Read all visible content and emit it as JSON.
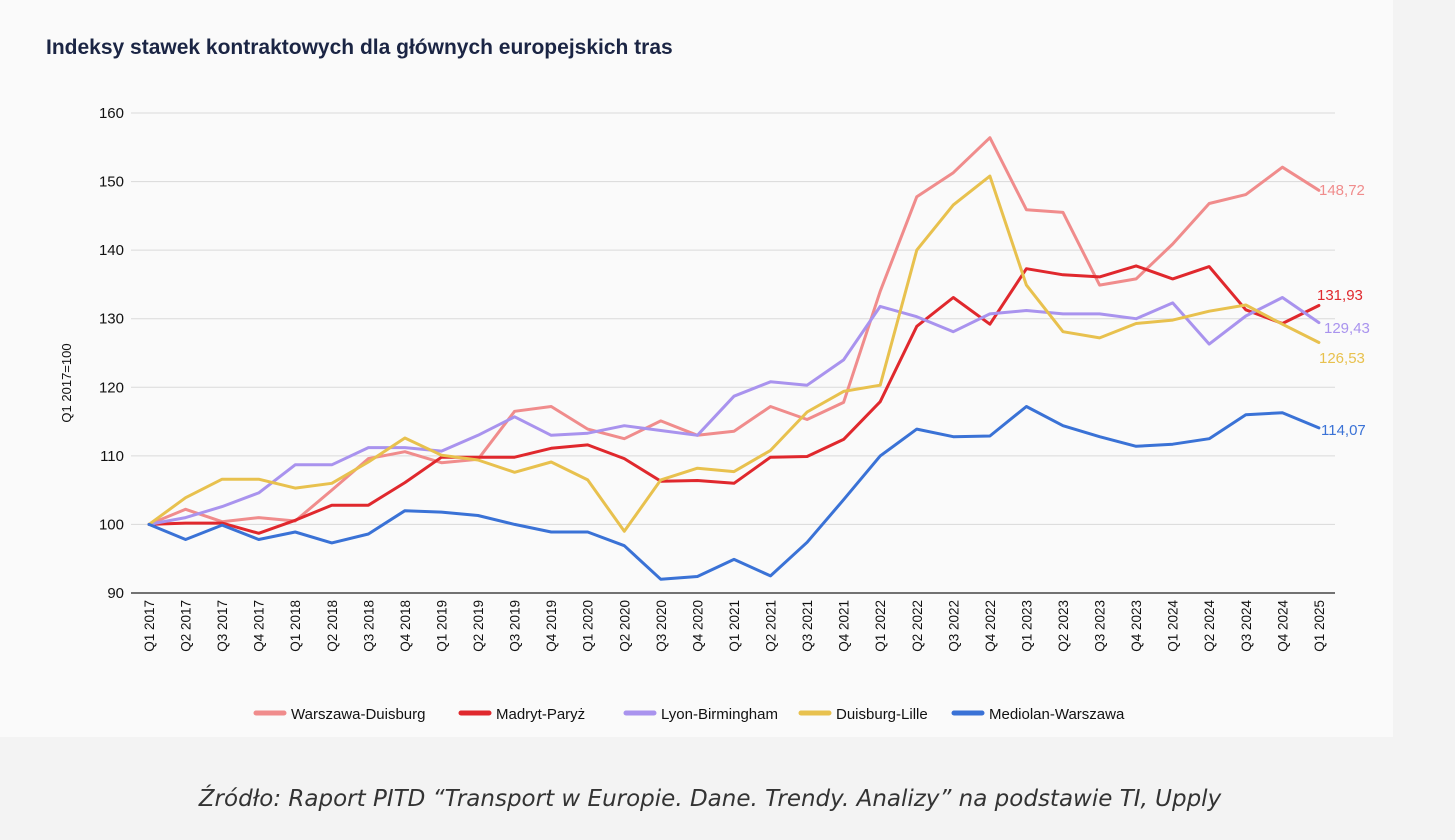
{
  "chart_data": {
    "type": "line",
    "title": "Indeksy stawek kontraktowych dla głównych europejskich tras",
    "ylabel": "Q1 2017=100",
    "xlabel": "",
    "ylim": [
      90,
      160
    ],
    "yticks": [
      90,
      100,
      110,
      120,
      130,
      140,
      150,
      160
    ],
    "grid": true,
    "legend_position": "bottom",
    "categories": [
      "Q1 2017",
      "Q2 2017",
      "Q3 2017",
      "Q4 2017",
      "Q1 2018",
      "Q2 2018",
      "Q3 2018",
      "Q4 2018",
      "Q1 2019",
      "Q2 2019",
      "Q3 2019",
      "Q4 2019",
      "Q1 2020",
      "Q2 2020",
      "Q3 2020",
      "Q4 2020",
      "Q1 2021",
      "Q2 2021",
      "Q3 2021",
      "Q4 2021",
      "Q1 2022",
      "Q2 2022",
      "Q3 2022",
      "Q4 2022",
      "Q1 2023",
      "Q2 2023",
      "Q3 2023",
      "Q4 2023",
      "Q1 2024",
      "Q2 2024",
      "Q3 2024",
      "Q4 2024",
      "Q1 2025"
    ],
    "series": [
      {
        "name": "Warszawa-Duisburg",
        "color": "#f08c8c",
        "end_label": "148,72",
        "values": [
          100,
          102.2,
          100.4,
          101,
          100.5,
          105,
          109.6,
          110.6,
          109,
          109.5,
          116.5,
          117.2,
          113.9,
          112.5,
          115.1,
          113,
          113.6,
          117.2,
          115.3,
          117.8,
          134,
          147.8,
          151.3,
          156.4,
          145.9,
          145.5,
          134.9,
          135.8,
          140.9,
          146.8,
          148.1,
          152.1,
          148.72
        ]
      },
      {
        "name": "Madryt-Paryż",
        "color": "#e0282d",
        "end_label": "131,93",
        "values": [
          100,
          100.2,
          100.2,
          98.7,
          100.6,
          102.8,
          102.8,
          106.1,
          109.8,
          109.8,
          109.8,
          111.1,
          111.6,
          109.6,
          106.3,
          106.4,
          106,
          109.8,
          109.9,
          112.4,
          117.9,
          128.9,
          133.1,
          129.2,
          137.3,
          136.4,
          136.1,
          137.7,
          135.8,
          137.6,
          131.3,
          129.3,
          131.93
        ]
      },
      {
        "name": "Lyon-Birmingham",
        "color": "#a993ee",
        "end_label": "129,43",
        "values": [
          100,
          101,
          102.6,
          104.6,
          108.7,
          108.7,
          111.2,
          111.2,
          110.7,
          113,
          115.7,
          113,
          113.3,
          114.4,
          113.7,
          113,
          118.7,
          120.8,
          120.3,
          124,
          131.8,
          130.3,
          128.1,
          130.7,
          131.2,
          130.7,
          130.7,
          130,
          132.3,
          126.3,
          130.4,
          133.1,
          129.43
        ]
      },
      {
        "name": "Duisburg-Lille",
        "color": "#e8c14e",
        "end_label": "126,53",
        "values": [
          100,
          103.9,
          106.6,
          106.6,
          105.3,
          106,
          109.1,
          112.6,
          110.1,
          109.4,
          107.6,
          109.1,
          106.5,
          99,
          106.5,
          108.2,
          107.7,
          110.8,
          116.4,
          119.4,
          120.3,
          140,
          146.6,
          150.8,
          134.9,
          128.1,
          127.2,
          129.3,
          129.8,
          131.1,
          132,
          129.2,
          126.53
        ]
      },
      {
        "name": "Mediolan-Warszawa",
        "color": "#3a72d6",
        "end_label": "114,07",
        "values": [
          100,
          97.8,
          99.9,
          97.8,
          98.9,
          97.3,
          98.6,
          102,
          101.8,
          101.3,
          100,
          98.9,
          98.9,
          96.9,
          92,
          92.4,
          94.9,
          92.5,
          97.4,
          103.6,
          110,
          113.9,
          112.8,
          112.9,
          117.2,
          114.4,
          112.8,
          111.4,
          111.7,
          112.5,
          116,
          116.3,
          114.07
        ]
      }
    ]
  },
  "source": "Źródło: Raport PITD “Transport w Europie. Dane. Trendy. Analizy” na podstawie TI, Upply"
}
